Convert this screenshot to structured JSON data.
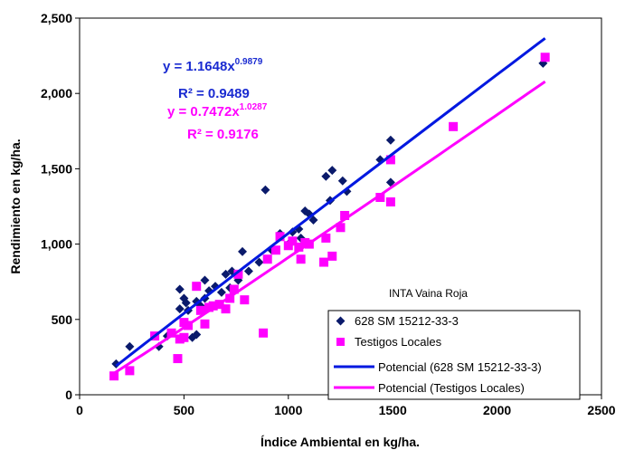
{
  "chart_data": {
    "type": "scatter",
    "xlabel": "Índice Ambiental en kg/ha.",
    "ylabel": "Rendimiento en kg/ha.",
    "xlim": [
      0,
      2500
    ],
    "ylim": [
      0,
      2500
    ],
    "x_ticks": [
      "0",
      "500",
      "1000",
      "1500",
      "2000",
      "2500"
    ],
    "y_ticks": [
      "0",
      "500",
      "1,000",
      "1,500",
      "2,000",
      "2,500"
    ],
    "grid": "off",
    "legend_placement": "bottom-right",
    "note": "INTA Vaina Roja",
    "series": [
      {
        "name": "628 SM 15212-33-3",
        "marker": "diamond",
        "color": "#0a1a6b",
        "points": [
          [
            175,
            205
          ],
          [
            240,
            320
          ],
          [
            380,
            320
          ],
          [
            420,
            390
          ],
          [
            480,
            700
          ],
          [
            480,
            570
          ],
          [
            500,
            640
          ],
          [
            510,
            610
          ],
          [
            520,
            560
          ],
          [
            540,
            380
          ],
          [
            560,
            620
          ],
          [
            580,
            590
          ],
          [
            600,
            760
          ],
          [
            620,
            690
          ],
          [
            650,
            720
          ],
          [
            680,
            680
          ],
          [
            700,
            800
          ],
          [
            720,
            710
          ],
          [
            730,
            820
          ],
          [
            760,
            760
          ],
          [
            780,
            950
          ],
          [
            810,
            820
          ],
          [
            860,
            880
          ],
          [
            890,
            1360
          ],
          [
            920,
            960
          ],
          [
            960,
            1070
          ],
          [
            1000,
            1000
          ],
          [
            1020,
            1080
          ],
          [
            1050,
            1100
          ],
          [
            1080,
            1220
          ],
          [
            1100,
            1200
          ],
          [
            1120,
            1160
          ],
          [
            1180,
            1450
          ],
          [
            1200,
            1290
          ],
          [
            1210,
            1490
          ],
          [
            1260,
            1420
          ],
          [
            1280,
            1350
          ],
          [
            1440,
            1560
          ],
          [
            1490,
            1690
          ],
          [
            1490,
            1410
          ],
          [
            2220,
            2200
          ],
          [
            560,
            400
          ],
          [
            600,
            640
          ],
          [
            1060,
            1040
          ]
        ]
      },
      {
        "name": "Testigos Locales",
        "marker": "square",
        "color": "#ff00ff",
        "points": [
          [
            165,
            125
          ],
          [
            240,
            160
          ],
          [
            360,
            390
          ],
          [
            440,
            410
          ],
          [
            470,
            240
          ],
          [
            480,
            370
          ],
          [
            500,
            380
          ],
          [
            500,
            480
          ],
          [
            520,
            460
          ],
          [
            560,
            720
          ],
          [
            580,
            560
          ],
          [
            600,
            470
          ],
          [
            620,
            580
          ],
          [
            640,
            590
          ],
          [
            670,
            600
          ],
          [
            700,
            570
          ],
          [
            720,
            640
          ],
          [
            740,
            700
          ],
          [
            760,
            800
          ],
          [
            790,
            630
          ],
          [
            880,
            410
          ],
          [
            900,
            900
          ],
          [
            940,
            960
          ],
          [
            960,
            1050
          ],
          [
            1000,
            990
          ],
          [
            1020,
            1020
          ],
          [
            1050,
            980
          ],
          [
            1060,
            900
          ],
          [
            1080,
            1010
          ],
          [
            1100,
            1000
          ],
          [
            1170,
            880
          ],
          [
            1180,
            1040
          ],
          [
            1210,
            920
          ],
          [
            1250,
            1110
          ],
          [
            1270,
            1190
          ],
          [
            1440,
            1310
          ],
          [
            1490,
            1280
          ],
          [
            1490,
            1560
          ],
          [
            1790,
            1780
          ],
          [
            2230,
            2240
          ]
        ]
      }
    ],
    "trendlines": [
      {
        "name": "Potencial (628 SM 15212-33-3)",
        "type": "power",
        "a": 1.1648,
        "b": 0.9879,
        "x_range": [
          175,
          2230
        ],
        "color": "#0018e0",
        "equation_base": "y = 1.1648x",
        "equation_exp": "0.9879",
        "r2_label": "R² = 0.9489"
      },
      {
        "name": "Potencial (Testigos Locales)",
        "type": "power",
        "a": 0.7472,
        "b": 1.0287,
        "x_range": [
          165,
          2230
        ],
        "color": "#ff00ff",
        "equation_base": "y = 0.7472x",
        "equation_exp": "1.0287",
        "r2_label": "R² = 0.9176"
      }
    ]
  }
}
